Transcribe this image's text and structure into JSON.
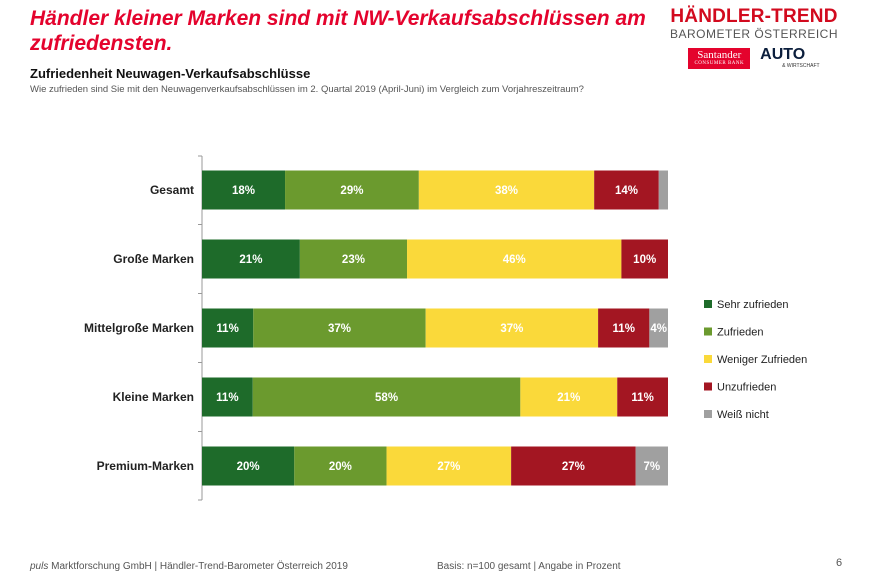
{
  "headline": "Händler kleiner Marken sind mit NW-Verkaufsabschlüssen am zufriedensten.",
  "brand": {
    "title": "HÄNDLER-TREND",
    "subtitle": "BAROMETER ÖSTERREICH",
    "logo1_name": "Santander",
    "logo1_sub": "CONSUMER BANK",
    "logo2_name": "AUTO",
    "logo2_sub": "& WIRTSCHAFT"
  },
  "chart_subtitle": "Zufriedenheit Neuwagen-Verkaufsabschlüsse",
  "question": "Wie zufrieden sind Sie mit den Neuwagenverkaufsabschlüssen im 2. Quartal 2019 (April-Juni) im Vergleich zum Vorjahreszeitraum?",
  "footer": {
    "company": "puls",
    "source": " Marktforschung GmbH | Händler-Trend-Barometer Österreich 2019",
    "basis": "Basis: n=100 gesamt | Angabe in Prozent",
    "page": "6"
  },
  "chart_data": {
    "type": "bar",
    "orientation": "horizontal",
    "stacked": true,
    "unit": "%",
    "categories": [
      "Gesamt",
      "Große Marken",
      "Mittelgroße Marken",
      "Kleine Marken",
      "Premium-Marken"
    ],
    "series": [
      {
        "name": "Sehr zufrieden",
        "color": "#1e6b2a",
        "values": [
          18,
          21,
          11,
          11,
          20
        ],
        "labels": [
          "18%",
          "21%",
          "11%",
          "11%",
          "20%"
        ]
      },
      {
        "name": "Zufrieden",
        "color": "#6b9a2e",
        "values": [
          29,
          23,
          37,
          58,
          20
        ],
        "labels": [
          "29%",
          "23%",
          "37%",
          "58%",
          "20%"
        ]
      },
      {
        "name": "Weniger Zufrieden",
        "color": "#fad93a",
        "values": [
          38,
          46,
          37,
          21,
          27
        ],
        "labels": [
          "38%",
          "46%",
          "37%",
          "21%",
          "27%"
        ]
      },
      {
        "name": "Unzufrieden",
        "color": "#a31622",
        "values": [
          14,
          10,
          11,
          11,
          27
        ],
        "labels": [
          "14%",
          "10%",
          "11%",
          "11%",
          "27%"
        ]
      },
      {
        "name": "Weiß nicht",
        "color": "#a0a0a0",
        "values": [
          2,
          0,
          4,
          0,
          7
        ],
        "labels": [
          "",
          "",
          "4%",
          "",
          "7%"
        ]
      }
    ],
    "legend_position": "right",
    "grid": false
  }
}
